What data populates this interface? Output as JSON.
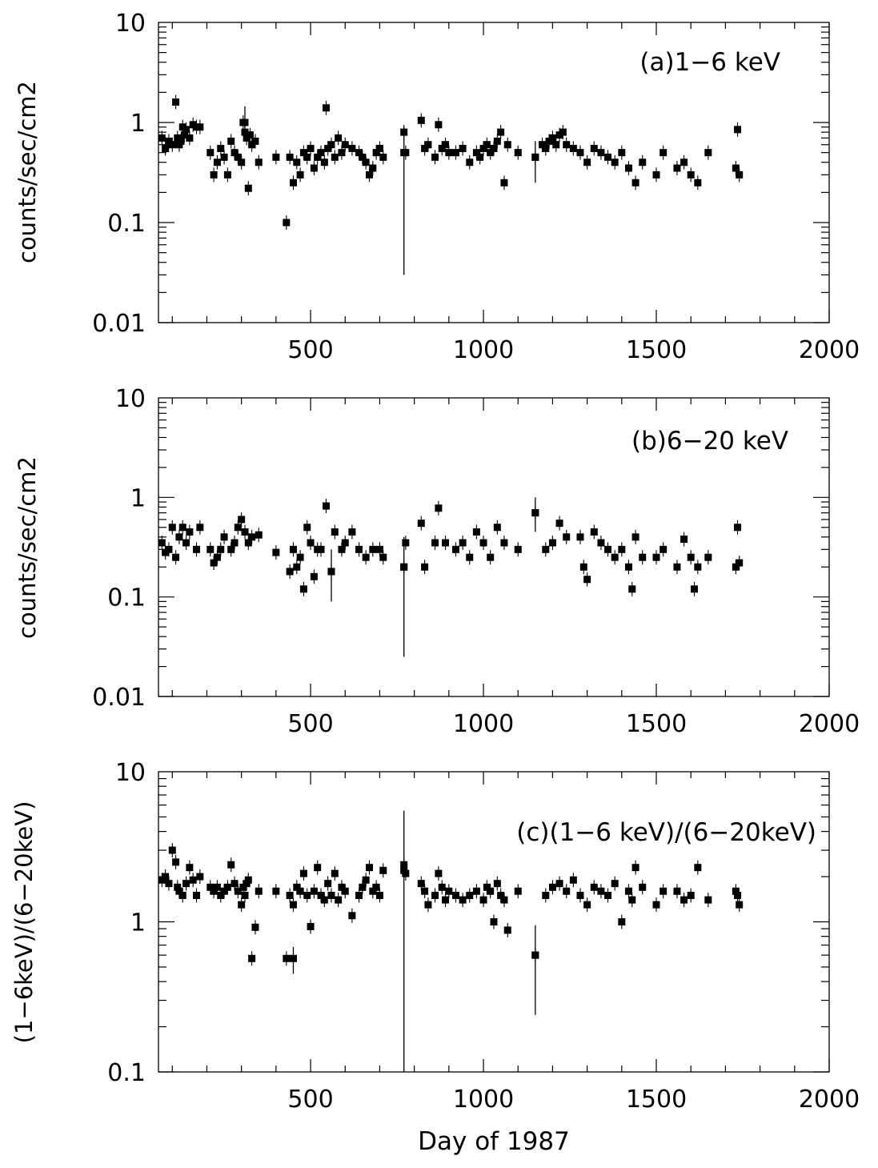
{
  "chart_data": [
    {
      "type": "scatter",
      "panel_label": "(a)1−6  keV",
      "ylabel": "counts/sec/cm2",
      "xlabel": "",
      "yscale": "log",
      "ylim": [
        0.01,
        10
      ],
      "xlim": [
        60,
        2000
      ],
      "x_ticks": [
        500,
        1000,
        1500,
        2000
      ],
      "y_ticks": [
        0.01,
        0.1,
        1,
        10
      ],
      "y_tick_labels": [
        "0.01",
        "0.1",
        "1",
        "10"
      ],
      "x": [
        70,
        80,
        90,
        100,
        110,
        115,
        120,
        125,
        130,
        135,
        140,
        150,
        160,
        170,
        180,
        210,
        220,
        230,
        240,
        250,
        260,
        270,
        280,
        290,
        300,
        305,
        310,
        315,
        320,
        325,
        330,
        340,
        350,
        400,
        430,
        440,
        450,
        460,
        470,
        480,
        490,
        500,
        510,
        520,
        530,
        540,
        545,
        550,
        560,
        570,
        580,
        590,
        600,
        620,
        640,
        650,
        660,
        670,
        680,
        690,
        700,
        710,
        770,
        775,
        820,
        830,
        840,
        860,
        870,
        880,
        890,
        900,
        920,
        940,
        960,
        980,
        990,
        1000,
        1010,
        1020,
        1030,
        1040,
        1050,
        1060,
        1070,
        1100,
        1150,
        1170,
        1180,
        1190,
        1200,
        1210,
        1220,
        1230,
        1240,
        1260,
        1280,
        1300,
        1320,
        1340,
        1360,
        1380,
        1400,
        1420,
        1440,
        1460,
        1500,
        1520,
        1560,
        1580,
        1600,
        1620,
        1650,
        1730,
        1735,
        1740
      ],
      "y": [
        0.7,
        0.55,
        0.65,
        0.6,
        1.6,
        0.7,
        0.6,
        0.65,
        0.9,
        0.75,
        0.85,
        0.7,
        0.95,
        0.9,
        0.9,
        0.5,
        0.3,
        0.4,
        0.55,
        0.45,
        0.3,
        0.65,
        0.5,
        0.45,
        0.4,
        1.0,
        0.8,
        0.7,
        0.22,
        0.75,
        0.6,
        0.65,
        0.4,
        0.45,
        0.1,
        0.45,
        0.25,
        0.4,
        0.3,
        0.5,
        0.45,
        0.55,
        0.35,
        0.45,
        0.5,
        0.4,
        1.4,
        0.55,
        0.6,
        0.45,
        0.7,
        0.5,
        0.6,
        0.55,
        0.5,
        0.45,
        0.4,
        0.3,
        0.35,
        0.5,
        0.55,
        0.45,
        0.8,
        0.5,
        1.05,
        0.55,
        0.6,
        0.45,
        0.95,
        0.55,
        0.6,
        0.5,
        0.5,
        0.55,
        0.4,
        0.5,
        0.45,
        0.55,
        0.6,
        0.5,
        0.55,
        0.65,
        0.8,
        0.25,
        0.6,
        0.5,
        0.45,
        0.6,
        0.55,
        0.65,
        0.7,
        0.6,
        0.75,
        0.8,
        0.6,
        0.55,
        0.5,
        0.4,
        0.55,
        0.5,
        0.45,
        0.4,
        0.5,
        0.35,
        0.25,
        0.4,
        0.3,
        0.5,
        0.35,
        0.4,
        0.3,
        0.25,
        0.5,
        0.35,
        0.85,
        0.3
      ],
      "err_points": [
        {
          "x": 770,
          "y": 0.5,
          "lo": 0.03,
          "hi": 0.9
        },
        {
          "x": 1150,
          "y": 0.45,
          "lo": 0.25,
          "hi": 0.65
        },
        {
          "x": 310,
          "y": 1.0,
          "lo": 0.75,
          "hi": 1.45
        }
      ]
    },
    {
      "type": "scatter",
      "panel_label": "(b)6−20  keV",
      "ylabel": "counts/sec/cm2",
      "xlabel": "",
      "yscale": "log",
      "ylim": [
        0.01,
        10
      ],
      "xlim": [
        60,
        2000
      ],
      "x_ticks": [
        500,
        1000,
        1500,
        2000
      ],
      "y_ticks": [
        0.01,
        0.1,
        1,
        10
      ],
      "y_tick_labels": [
        "0.01",
        "0.1",
        "1",
        "10"
      ],
      "x": [
        70,
        80,
        90,
        100,
        110,
        120,
        130,
        140,
        150,
        170,
        180,
        210,
        220,
        230,
        240,
        250,
        270,
        280,
        290,
        300,
        310,
        320,
        330,
        350,
        400,
        440,
        450,
        460,
        470,
        480,
        490,
        500,
        510,
        520,
        530,
        545,
        560,
        570,
        590,
        600,
        620,
        640,
        660,
        680,
        700,
        710,
        770,
        775,
        820,
        830,
        860,
        870,
        890,
        920,
        940,
        960,
        980,
        1000,
        1020,
        1040,
        1060,
        1100,
        1150,
        1180,
        1200,
        1220,
        1240,
        1280,
        1290,
        1300,
        1320,
        1340,
        1360,
        1380,
        1400,
        1420,
        1430,
        1440,
        1460,
        1500,
        1520,
        1560,
        1580,
        1600,
        1610,
        1620,
        1650,
        1730,
        1735,
        1740
      ],
      "y": [
        0.35,
        0.28,
        0.3,
        0.5,
        0.25,
        0.4,
        0.5,
        0.35,
        0.45,
        0.3,
        0.5,
        0.3,
        0.22,
        0.25,
        0.3,
        0.4,
        0.3,
        0.35,
        0.5,
        0.6,
        0.45,
        0.35,
        0.4,
        0.42,
        0.28,
        0.18,
        0.3,
        0.2,
        0.25,
        0.12,
        0.5,
        0.35,
        0.16,
        0.3,
        0.3,
        0.82,
        0.18,
        0.45,
        0.3,
        0.35,
        0.45,
        0.3,
        0.25,
        0.3,
        0.3,
        0.25,
        0.2,
        0.35,
        0.55,
        0.2,
        0.35,
        0.78,
        0.35,
        0.3,
        0.35,
        0.25,
        0.45,
        0.35,
        0.25,
        0.5,
        0.35,
        0.3,
        0.7,
        0.3,
        0.35,
        0.55,
        0.4,
        0.4,
        0.2,
        0.15,
        0.45,
        0.35,
        0.3,
        0.25,
        0.3,
        0.2,
        0.12,
        0.4,
        0.25,
        0.25,
        0.3,
        0.2,
        0.38,
        0.25,
        0.12,
        0.2,
        0.25,
        0.2,
        0.5,
        0.22
      ],
      "err_points": [
        {
          "x": 770,
          "y": 0.2,
          "lo": 0.025,
          "hi": 0.4
        },
        {
          "x": 1150,
          "y": 0.7,
          "lo": 0.45,
          "hi": 1.0
        },
        {
          "x": 560,
          "y": 0.18,
          "lo": 0.09,
          "hi": 0.3
        }
      ]
    },
    {
      "type": "scatter",
      "panel_label": "(c)(1−6  keV)/(6−20keV)",
      "ylabel": "(1−6keV)/(6−20keV)",
      "xlabel": "Day  of  1987",
      "yscale": "log",
      "ylim": [
        0.1,
        10
      ],
      "xlim": [
        60,
        2000
      ],
      "x_ticks": [
        500,
        1000,
        1500,
        2000
      ],
      "y_ticks": [
        0.1,
        1,
        10
      ],
      "y_tick_labels": [
        "0.1",
        "1",
        "10"
      ],
      "x": [
        70,
        80,
        90,
        100,
        110,
        115,
        120,
        130,
        140,
        150,
        160,
        170,
        180,
        210,
        220,
        230,
        240,
        250,
        260,
        270,
        280,
        290,
        300,
        305,
        310,
        315,
        320,
        330,
        340,
        350,
        400,
        430,
        440,
        450,
        460,
        470,
        480,
        490,
        500,
        510,
        520,
        530,
        540,
        550,
        560,
        570,
        580,
        590,
        600,
        620,
        640,
        650,
        660,
        670,
        680,
        690,
        700,
        710,
        770,
        775,
        820,
        830,
        840,
        860,
        870,
        880,
        890,
        900,
        920,
        940,
        960,
        980,
        1000,
        1010,
        1020,
        1030,
        1040,
        1050,
        1060,
        1070,
        1100,
        1150,
        1180,
        1200,
        1220,
        1240,
        1260,
        1280,
        1300,
        1320,
        1340,
        1360,
        1380,
        1400,
        1420,
        1430,
        1440,
        1460,
        1500,
        1520,
        1560,
        1580,
        1600,
        1620,
        1650,
        1730,
        1735,
        1740
      ],
      "y": [
        1.9,
        2.0,
        1.8,
        3.0,
        2.5,
        1.7,
        1.6,
        1.5,
        1.8,
        2.3,
        1.9,
        1.5,
        2.0,
        1.7,
        1.6,
        1.7,
        1.5,
        1.6,
        1.7,
        2.4,
        1.8,
        1.6,
        1.3,
        1.7,
        1.5,
        1.8,
        1.9,
        0.57,
        0.92,
        1.6,
        1.6,
        0.57,
        1.5,
        1.3,
        1.7,
        1.6,
        2.1,
        1.5,
        0.93,
        1.6,
        2.3,
        1.5,
        1.4,
        1.8,
        1.5,
        2.1,
        1.4,
        1.7,
        1.6,
        1.1,
        1.5,
        1.7,
        1.9,
        2.3,
        1.6,
        1.7,
        1.5,
        2.2,
        2.4,
        2.1,
        1.8,
        1.6,
        1.3,
        1.5,
        2.1,
        1.7,
        1.4,
        1.6,
        1.5,
        1.4,
        1.5,
        1.6,
        1.4,
        1.7,
        1.6,
        1.0,
        1.8,
        1.5,
        1.4,
        0.88,
        1.6,
        0.6,
        1.5,
        1.7,
        1.8,
        1.6,
        1.9,
        1.5,
        1.3,
        1.7,
        1.6,
        1.5,
        1.8,
        1.0,
        1.6,
        1.4,
        2.3,
        1.7,
        1.3,
        1.6,
        1.6,
        1.4,
        1.5,
        2.3,
        1.4,
        1.6,
        1.5,
        1.3
      ],
      "err_points": [
        {
          "x": 770,
          "y": 2.2,
          "lo": 0.1,
          "hi": 5.5
        },
        {
          "x": 1150,
          "y": 0.6,
          "lo": 0.24,
          "hi": 0.95
        },
        {
          "x": 450,
          "y": 0.57,
          "lo": 0.45,
          "hi": 0.68
        }
      ]
    }
  ]
}
